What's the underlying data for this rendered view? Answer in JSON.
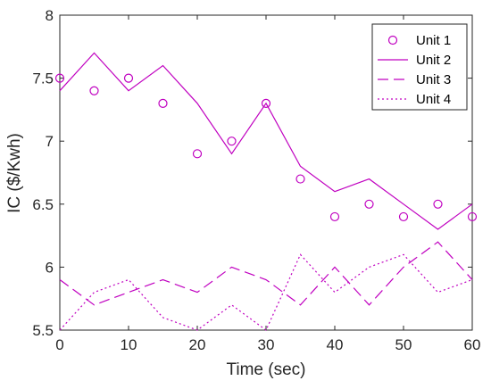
{
  "chart_data": {
    "type": "line",
    "xlabel": "Time (sec)",
    "ylabel": "IC ($/Kwh)",
    "xlim": [
      0,
      60
    ],
    "ylim": [
      5.5,
      8
    ],
    "xticks": [
      "0",
      "10",
      "20",
      "30",
      "40",
      "50",
      "60"
    ],
    "yticks": [
      "5.5",
      "6",
      "6.5",
      "7",
      "7.5",
      "8"
    ],
    "grid": false,
    "legend_position": "top-right",
    "x": [
      0,
      5,
      10,
      15,
      20,
      25,
      30,
      35,
      40,
      45,
      50,
      55,
      60
    ],
    "series": [
      {
        "name": "Unit 1",
        "style": "marker-circle",
        "color": "#c000c0",
        "values": [
          7.5,
          7.4,
          7.5,
          7.3,
          6.9,
          7.0,
          7.3,
          6.7,
          6.4,
          6.5,
          6.4,
          6.5,
          6.4
        ]
      },
      {
        "name": "Unit 2",
        "style": "solid",
        "color": "#c000c0",
        "values": [
          7.4,
          7.7,
          7.4,
          7.6,
          7.3,
          6.9,
          7.3,
          6.8,
          6.6,
          6.7,
          6.5,
          6.3,
          6.5
        ]
      },
      {
        "name": "Unit 3",
        "style": "dashed",
        "color": "#c000c0",
        "values": [
          5.9,
          5.7,
          5.8,
          5.9,
          5.8,
          6.0,
          5.9,
          5.7,
          6.0,
          5.7,
          6.0,
          6.2,
          5.9
        ]
      },
      {
        "name": "Unit 4",
        "style": "dotted",
        "color": "#c000c0",
        "values": [
          5.5,
          5.8,
          5.9,
          5.6,
          5.5,
          5.7,
          5.5,
          6.1,
          5.8,
          6.0,
          6.1,
          5.8,
          5.9
        ]
      }
    ]
  }
}
